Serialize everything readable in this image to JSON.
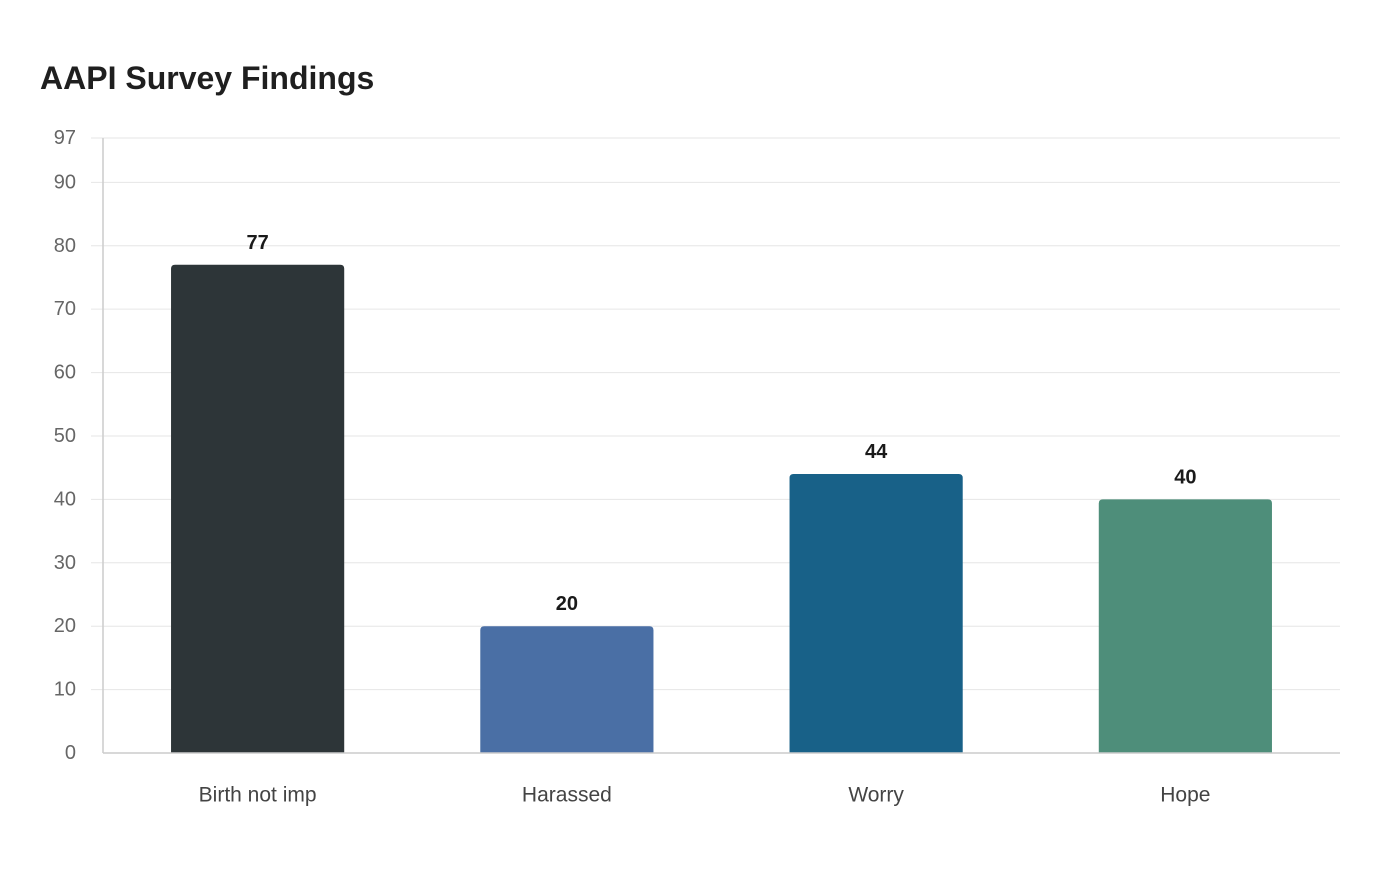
{
  "chart_data": {
    "type": "bar",
    "title": "AAPI Survey Findings",
    "xlabel": "",
    "ylabel": "",
    "categories": [
      "Birth not imp",
      "Harassed",
      "Worry",
      "Hope"
    ],
    "values": [
      77,
      20,
      44,
      40
    ],
    "colors": [
      "#2d3538",
      "#4a6fa5",
      "#186188",
      "#4e8e7a"
    ],
    "ylim": [
      0,
      97
    ],
    "yticks": [
      0,
      10,
      20,
      30,
      40,
      50,
      60,
      70,
      80,
      90,
      97
    ],
    "grid": true,
    "legend": "none"
  }
}
